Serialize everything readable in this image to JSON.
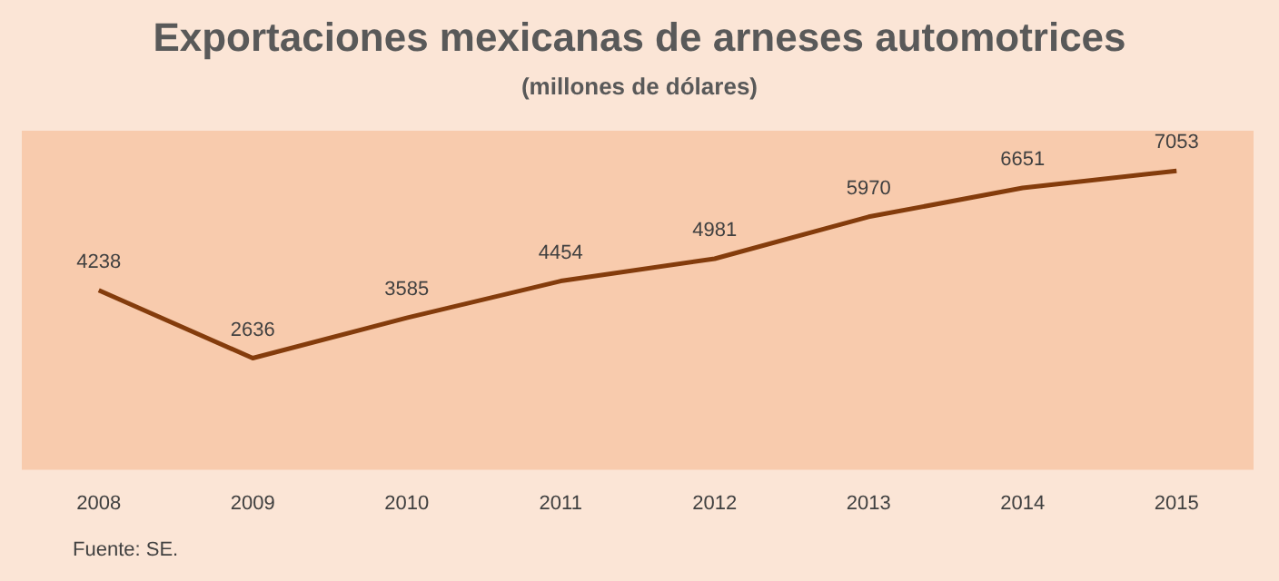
{
  "chart_data": {
    "type": "line",
    "title": "Exportaciones mexicanas de arneses automotrices",
    "subtitle": "(millones de dólares)",
    "annotations": [
      "Fuente: SE."
    ],
    "categories": [
      "2008",
      "2009",
      "2010",
      "2011",
      "2012",
      "2013",
      "2014",
      "2015"
    ],
    "series": [
      {
        "color": "#843c0c",
        "values": [
          4238,
          2636,
          3585,
          4454,
          4981,
          5970,
          6651,
          7053
        ]
      }
    ],
    "ylim": [
      0,
      8000
    ],
    "data_labels": true,
    "tick_labels": "x",
    "grid": false,
    "legend": false,
    "marker": "none",
    "line_style": "solid"
  }
}
